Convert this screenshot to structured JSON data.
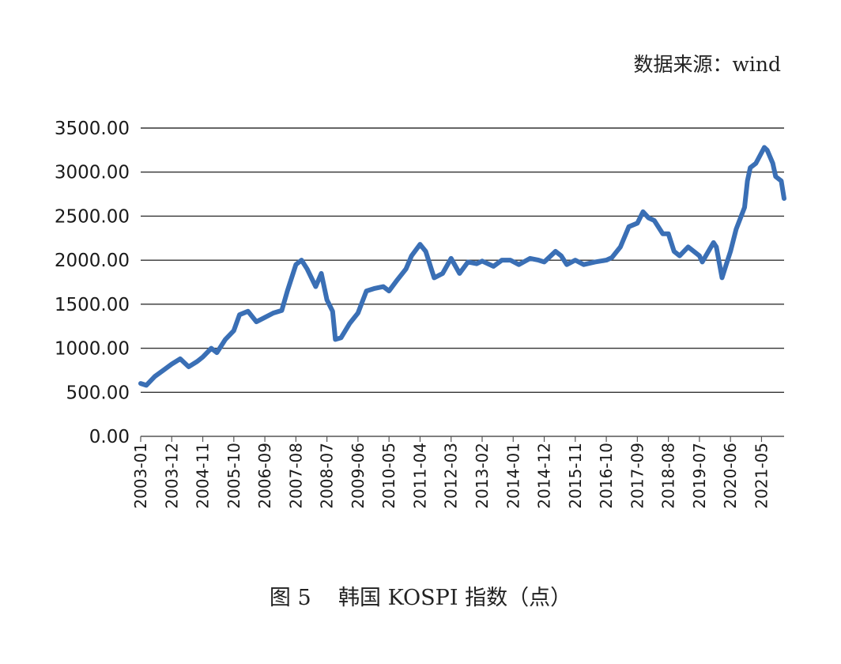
{
  "source_note": "数据来源：wind",
  "caption": "图 5    韩国 KOSPI 指数（点）",
  "colors": {
    "line": "#3a6fb5",
    "grid": "#333333",
    "axis": "#555555",
    "text": "#1a1a1a"
  },
  "chart_data": {
    "type": "line",
    "title": "",
    "xlabel": "",
    "ylabel": "",
    "ylim": [
      0,
      3500
    ],
    "yticks": [
      "0.00",
      "500.00",
      "1000.00",
      "1500.00",
      "2000.00",
      "2500.00",
      "3000.00",
      "3500.00"
    ],
    "xticks": [
      "2003-01",
      "2003-12",
      "2004-11",
      "2005-10",
      "2006-09",
      "2007-08",
      "2008-07",
      "2009-06",
      "2010-05",
      "2011-04",
      "2012-03",
      "2013-02",
      "2014-01",
      "2014-12",
      "2015-11",
      "2016-10",
      "2017-09",
      "2018-08",
      "2019-07",
      "2020-06",
      "2021-05"
    ],
    "grid": true,
    "legend": "none",
    "series": [
      {
        "x": [
          "2003-01",
          "2003-03",
          "2003-06",
          "2003-09",
          "2003-12",
          "2004-03",
          "2004-06",
          "2004-09",
          "2004-11",
          "2005-02",
          "2005-04",
          "2005-07",
          "2005-10",
          "2005-12",
          "2006-03",
          "2006-06",
          "2006-09",
          "2006-12",
          "2007-03",
          "2007-05",
          "2007-08",
          "2007-10",
          "2007-12",
          "2008-03",
          "2008-05",
          "2008-07",
          "2008-09",
          "2008-10",
          "2008-12",
          "2009-03",
          "2009-06",
          "2009-09",
          "2009-12",
          "2010-03",
          "2010-05",
          "2010-08",
          "2010-11",
          "2011-01",
          "2011-04",
          "2011-06",
          "2011-08",
          "2011-09",
          "2011-12",
          "2012-03",
          "2012-06",
          "2012-09",
          "2012-12",
          "2013-02",
          "2013-06",
          "2013-09",
          "2013-12",
          "2014-03",
          "2014-07",
          "2014-10",
          "2014-12",
          "2015-04",
          "2015-06",
          "2015-08",
          "2015-11",
          "2016-02",
          "2016-06",
          "2016-10",
          "2016-12",
          "2017-03",
          "2017-06",
          "2017-09",
          "2017-11",
          "2018-01",
          "2018-03",
          "2018-06",
          "2018-08",
          "2018-10",
          "2018-12",
          "2019-03",
          "2019-05",
          "2019-07",
          "2019-08",
          "2019-12",
          "2020-01",
          "2020-03",
          "2020-04",
          "2020-06",
          "2020-08",
          "2020-11",
          "2020-12",
          "2021-01",
          "2021-03",
          "2021-06",
          "2021-07",
          "2021-09",
          "2021-10",
          "2021-12",
          "2022-01"
        ],
        "y": [
          600,
          580,
          680,
          750,
          820,
          880,
          790,
          850,
          900,
          1000,
          950,
          1100,
          1200,
          1380,
          1420,
          1300,
          1350,
          1400,
          1430,
          1650,
          1950,
          2000,
          1900,
          1700,
          1850,
          1550,
          1420,
          1100,
          1120,
          1280,
          1400,
          1650,
          1680,
          1700,
          1650,
          1780,
          1900,
          2050,
          2180,
          2100,
          1900,
          1800,
          1850,
          2020,
          1850,
          1980,
          1960,
          1990,
          1930,
          2000,
          2000,
          1950,
          2020,
          2000,
          1980,
          2100,
          2050,
          1950,
          2000,
          1950,
          1980,
          2000,
          2030,
          2150,
          2380,
          2420,
          2550,
          2480,
          2450,
          2300,
          2300,
          2100,
          2050,
          2150,
          2100,
          2050,
          1980,
          2200,
          2150,
          1800,
          1900,
          2100,
          2350,
          2600,
          2900,
          3050,
          3100,
          3280,
          3250,
          3100,
          2950,
          2900,
          2700
        ]
      }
    ]
  }
}
